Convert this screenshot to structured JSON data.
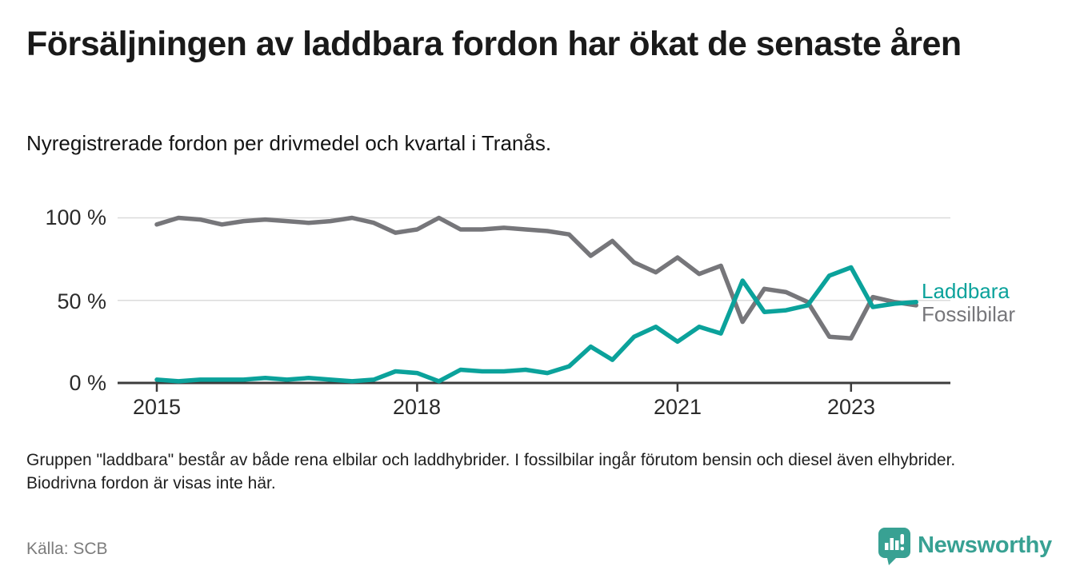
{
  "header": {
    "title": "Försäljningen av laddbara fordon har ökat de senaste åren",
    "subtitle": "Nyregistrerade fordon per drivmedel och kvartal i Tranås."
  },
  "footer": {
    "note": "Gruppen \"laddbara\" består av både rena elbilar och laddhybrider. I fossilbilar ingår förutom bensin och diesel även elhybrider. Biodrivna fordon är visas inte här.",
    "source": "Källa: SCB"
  },
  "branding": {
    "logo_text": "Newsworthy",
    "logo_color": "#38a193",
    "logo_icon": "newsworthy-pin-barchart-icon"
  },
  "colors": {
    "laddbara": "#0ba29b",
    "fossilbilar": "#76767a",
    "axis": "#3c3c3c",
    "gridline": "#dbdbdb"
  },
  "chart_data": {
    "type": "line",
    "title": "Försäljningen av laddbara fordon har ökat de senaste åren",
    "subtitle": "Nyregistrerade fordon per drivmedel och kvartal i Tranås.",
    "source": "SCB",
    "unit": "%",
    "xlabel": "",
    "ylabel": "",
    "ylim": [
      0,
      100
    ],
    "grid": "horizontal",
    "gridlines_at": [
      50,
      100
    ],
    "legend_position": "right-end-of-line",
    "categories": [
      "2015 Q1",
      "2015 Q2",
      "2015 Q3",
      "2015 Q4",
      "2016 Q1",
      "2016 Q2",
      "2016 Q3",
      "2016 Q4",
      "2017 Q1",
      "2017 Q2",
      "2017 Q3",
      "2017 Q4",
      "2018 Q1",
      "2018 Q2",
      "2018 Q3",
      "2018 Q4",
      "2019 Q1",
      "2019 Q2",
      "2019 Q3",
      "2019 Q4",
      "2020 Q1",
      "2020 Q2",
      "2020 Q3",
      "2020 Q4",
      "2021 Q1",
      "2021 Q2",
      "2021 Q3",
      "2021 Q4",
      "2022 Q1",
      "2022 Q2",
      "2022 Q3",
      "2022 Q4",
      "2023 Q1",
      "2023 Q2",
      "2023 Q3",
      "2023 Q4"
    ],
    "x_ticks": {
      "labels": [
        "2015",
        "2018",
        "2021",
        "2023"
      ],
      "category_indices": [
        0,
        12,
        24,
        32
      ]
    },
    "y_ticks": {
      "labels": [
        "100 %",
        "50 %",
        "0 %"
      ],
      "values": [
        100,
        50,
        0
      ]
    },
    "series": [
      {
        "name": "Laddbara",
        "color": "#0ba29b",
        "values": [
          2,
          1,
          2,
          2,
          2,
          3,
          2,
          3,
          2,
          1,
          2,
          7,
          6,
          1,
          8,
          7,
          7,
          8,
          6,
          10,
          22,
          14,
          28,
          34,
          25,
          34,
          30,
          62,
          43,
          44,
          47,
          65,
          70,
          46,
          48,
          49
        ]
      },
      {
        "name": "Fossilbilar",
        "color": "#76767a",
        "values": [
          96,
          100,
          99,
          96,
          98,
          99,
          98,
          97,
          98,
          100,
          97,
          91,
          93,
          100,
          93,
          93,
          94,
          93,
          92,
          90,
          77,
          86,
          73,
          67,
          76,
          66,
          71,
          37,
          57,
          55,
          49,
          28,
          27,
          52,
          49,
          47
        ]
      }
    ]
  }
}
